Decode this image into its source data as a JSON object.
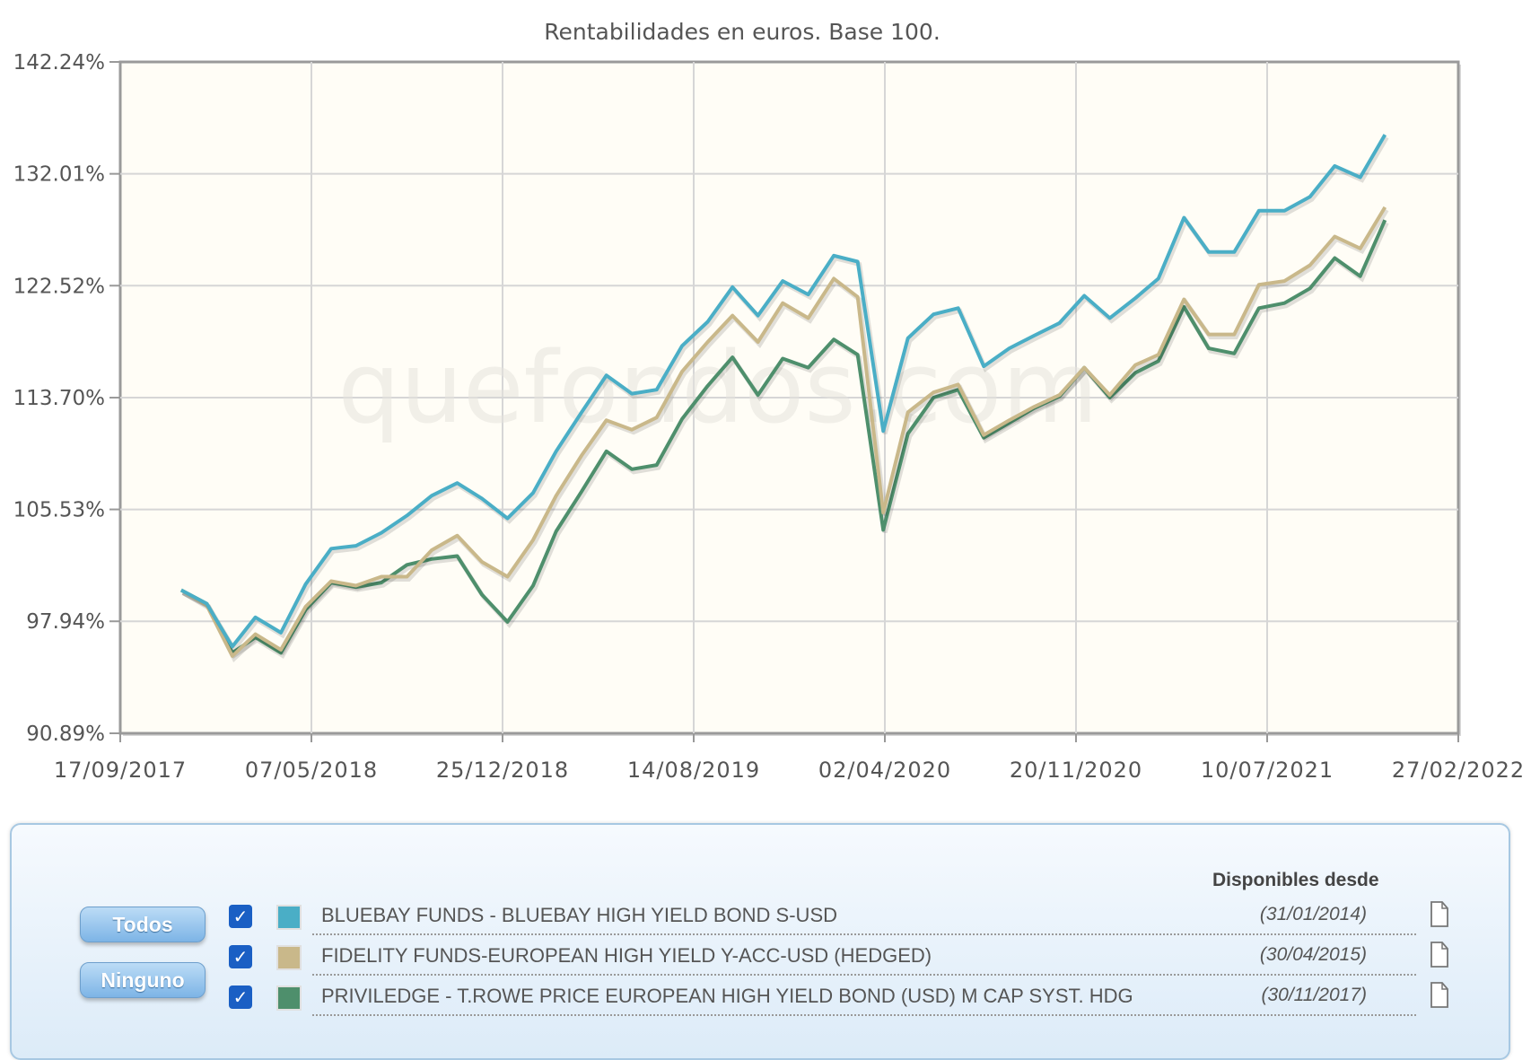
{
  "chart_data": {
    "type": "line",
    "title": "Rentabilidades en euros. Base 100.",
    "y_scale": "log",
    "ylim": [
      90.89,
      142.24
    ],
    "y_ticks": [
      "142.24%",
      "132.01%",
      "122.52%",
      "113.70%",
      "105.53%",
      "97.94%",
      "90.89%"
    ],
    "y_tick_values": [
      142.24,
      132.01,
      122.52,
      113.7,
      105.53,
      97.94,
      90.89
    ],
    "xlim": [
      "2017-09-17",
      "2022-02-27"
    ],
    "x_ticks": [
      "17/09/2017",
      "07/05/2018",
      "25/12/2018",
      "14/08/2019",
      "02/04/2020",
      "20/11/2020",
      "10/07/2021",
      "27/02/2022"
    ],
    "x_tick_dates": [
      "2017-09-17",
      "2018-05-07",
      "2018-12-25",
      "2019-08-14",
      "2020-04-02",
      "2020-11-20",
      "2021-07-10",
      "2022-02-27"
    ],
    "grid": true,
    "watermark": "quefondos.com",
    "x": [
      "2017-11-30",
      "2017-12-31",
      "2018-01-31",
      "2018-02-28",
      "2018-03-31",
      "2018-04-30",
      "2018-05-31",
      "2018-06-30",
      "2018-07-31",
      "2018-08-31",
      "2018-09-30",
      "2018-10-31",
      "2018-11-30",
      "2018-12-31",
      "2019-01-31",
      "2019-02-28",
      "2019-03-31",
      "2019-04-30",
      "2019-05-31",
      "2019-06-30",
      "2019-07-31",
      "2019-08-31",
      "2019-09-30",
      "2019-10-31",
      "2019-11-30",
      "2019-12-31",
      "2020-01-31",
      "2020-02-29",
      "2020-03-31",
      "2020-04-30",
      "2020-05-31",
      "2020-06-30",
      "2020-07-31",
      "2020-08-31",
      "2020-09-30",
      "2020-10-31",
      "2020-11-30",
      "2020-12-31",
      "2021-01-31",
      "2021-02-28",
      "2021-03-31",
      "2021-04-30",
      "2021-05-31",
      "2021-06-30",
      "2021-07-31",
      "2021-08-31",
      "2021-09-30",
      "2021-10-31",
      "2021-11-30"
    ],
    "series": [
      {
        "name": "BLUEBAY FUNDS - BLUEBAY HIGH YIELD BOND S-USD",
        "color": "#4aaec6",
        "values": [
          100.0,
          99.1,
          96.3,
          98.2,
          97.2,
          100.4,
          102.8,
          103.0,
          103.9,
          105.1,
          106.5,
          107.4,
          106.3,
          104.9,
          106.7,
          109.7,
          112.6,
          115.4,
          114.0,
          114.3,
          117.7,
          119.6,
          122.4,
          120.1,
          122.9,
          121.8,
          125.0,
          124.5,
          111.2,
          118.3,
          120.2,
          120.7,
          116.1,
          117.5,
          118.5,
          119.5,
          121.7,
          119.9,
          121.5,
          123.1,
          128.2,
          125.3,
          125.3,
          128.8,
          128.8,
          130.0,
          132.7,
          131.7,
          135.5
        ]
      },
      {
        "name": "FIDELITY FUNDS-EUROPEAN HIGH YIELD Y-ACC-USD (HEDGED)",
        "color": "#c9b88a",
        "values": [
          100.0,
          99.0,
          95.7,
          97.1,
          96.1,
          98.9,
          100.6,
          100.3,
          100.9,
          100.9,
          102.7,
          103.7,
          101.9,
          100.9,
          103.4,
          106.5,
          109.4,
          112.0,
          111.3,
          112.2,
          115.7,
          118.0,
          120.1,
          118.0,
          121.1,
          119.9,
          123.1,
          121.6,
          105.3,
          112.6,
          114.1,
          114.7,
          110.9,
          112.0,
          113.0,
          113.9,
          116.0,
          113.9,
          116.2,
          117.0,
          121.4,
          118.6,
          118.6,
          122.6,
          122.9,
          124.2,
          126.6,
          125.6,
          129.1
        ]
      },
      {
        "name": "PRIVILEDGE - T.ROWE PRICE EUROPEAN HIGH YIELD BOND (USD) M CAP SYST. HDG",
        "color": "#4e8f6c",
        "values": [
          100.0,
          99.1,
          95.9,
          96.9,
          95.9,
          98.7,
          100.5,
          100.2,
          100.5,
          101.7,
          102.1,
          102.3,
          99.7,
          97.9,
          100.3,
          104.0,
          106.8,
          109.7,
          108.4,
          108.7,
          112.1,
          114.6,
          116.8,
          113.9,
          116.7,
          116.0,
          118.2,
          117.0,
          104.1,
          111.0,
          113.7,
          114.3,
          110.7,
          111.8,
          112.9,
          113.8,
          116.0,
          113.7,
          115.6,
          116.5,
          120.8,
          117.5,
          117.1,
          120.7,
          121.1,
          122.3,
          124.8,
          123.3,
          128.0
        ]
      }
    ]
  },
  "legend": {
    "header": "Disponibles desde",
    "todos_label": "Todos",
    "ninguno_label": "Ninguno",
    "checkbox_color": "#1a5fc4",
    "items": [
      {
        "name": "BLUEBAY FUNDS - BLUEBAY HIGH YIELD BOND S-USD",
        "since": "(31/01/2014)",
        "checked": true,
        "color": "#4aaec6",
        "icon": "document-icon"
      },
      {
        "name": "FIDELITY FUNDS-EUROPEAN HIGH YIELD Y-ACC-USD (HEDGED)",
        "since": "(30/04/2015)",
        "checked": true,
        "color": "#c9b88a",
        "icon": "document-icon"
      },
      {
        "name": "PRIVILEDGE - T.ROWE PRICE EUROPEAN HIGH YIELD BOND (USD) M CAP SYST. HDG",
        "since": "(30/11/2017)",
        "checked": true,
        "color": "#4e8f6c",
        "icon": "document-icon"
      }
    ]
  }
}
